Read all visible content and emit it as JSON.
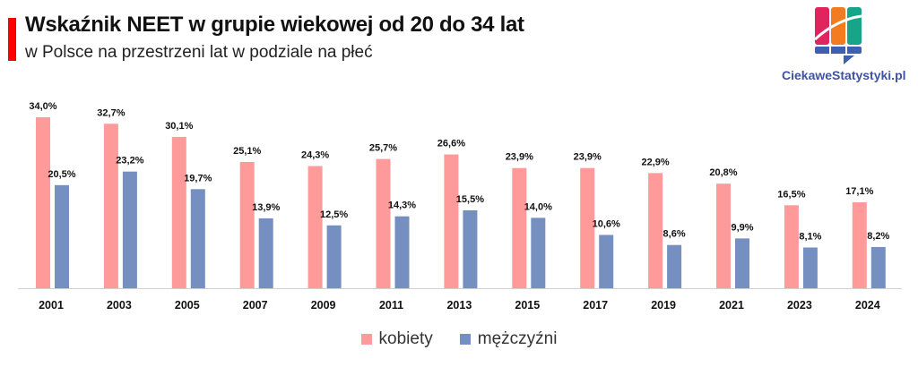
{
  "header": {
    "title": "Wskaźnik NEET w grupie wiekowej od 20 do 34 lat",
    "subtitle": "w Polsce na przestrzeni lat w podziale na płeć"
  },
  "logo": {
    "text": "CiekaweStatystyki.pl"
  },
  "colors": {
    "kobiety": "#ff9a9a",
    "mezczyzni": "#7590c0",
    "accent": "#ff0000"
  },
  "chart_data": {
    "type": "bar",
    "title": "Wskaźnik NEET w grupie wiekowej od 20 do 34 lat",
    "xlabel": "",
    "ylabel": "",
    "ylim": [
      0,
      34
    ],
    "categories": [
      "2001",
      "2003",
      "2005",
      "2007",
      "2009",
      "2011",
      "2013",
      "2015",
      "2017",
      "2019",
      "2021",
      "2023",
      "2024"
    ],
    "series": [
      {
        "name": "kobiety",
        "values": [
          34.0,
          32.7,
          30.1,
          25.1,
          24.3,
          25.7,
          26.6,
          23.9,
          23.9,
          22.9,
          20.8,
          16.5,
          17.1
        ],
        "labels": [
          "34,0%",
          "32,7%",
          "30,1%",
          "25,1%",
          "24,3%",
          "25,7%",
          "26,6%",
          "23,9%",
          "23,9%",
          "22,9%",
          "20,8%",
          "16,5%",
          "17,1%"
        ]
      },
      {
        "name": "mężczyźni",
        "values": [
          20.5,
          23.2,
          19.7,
          13.9,
          12.5,
          14.3,
          15.5,
          14.0,
          10.6,
          8.6,
          9.9,
          8.1,
          8.2
        ],
        "labels": [
          "20,5%",
          "23,2%",
          "19,7%",
          "13,9%",
          "12,5%",
          "14,3%",
          "15,5%",
          "14,0%",
          "10,6%",
          "8,6%",
          "9,9%",
          "8,1%",
          "8,2%"
        ]
      }
    ],
    "legend": "bottom",
    "grid": false
  }
}
